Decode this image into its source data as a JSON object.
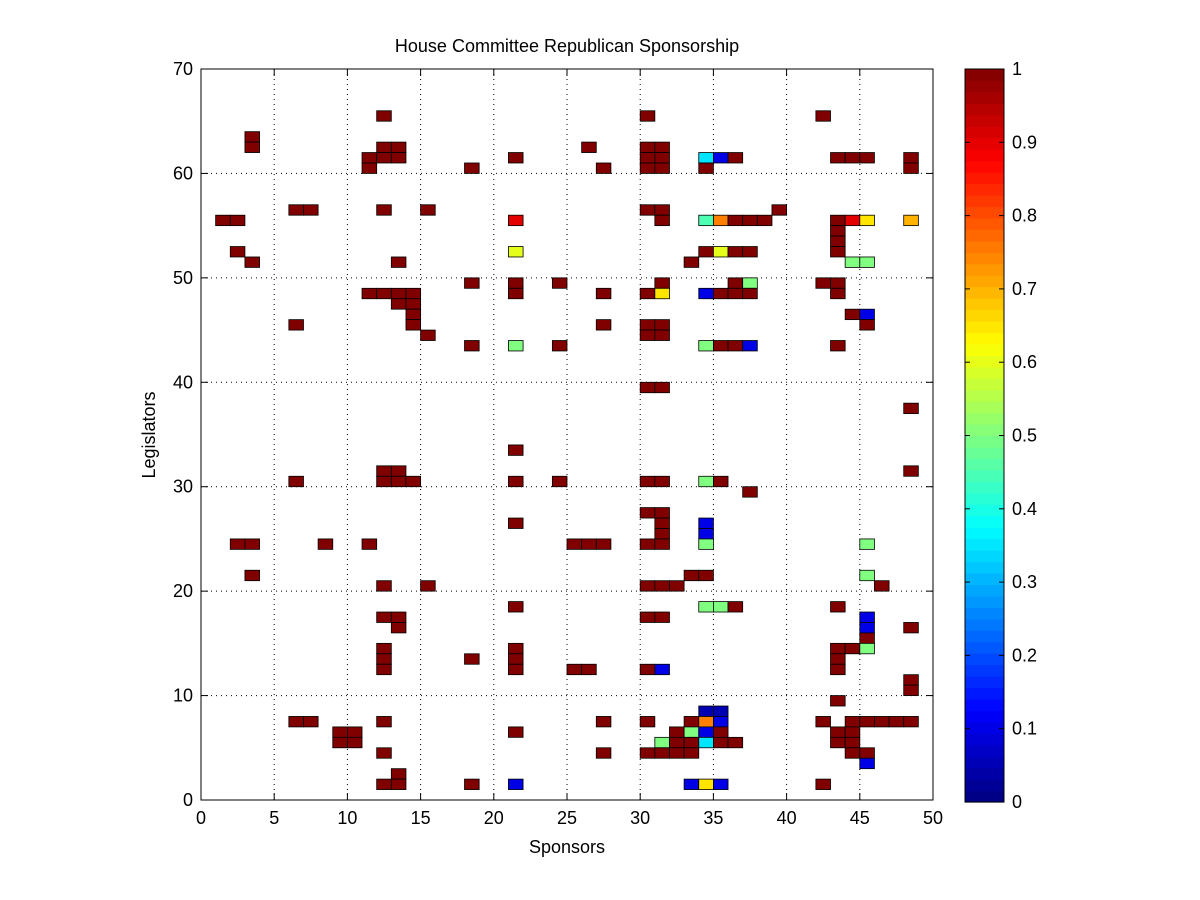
{
  "chart_data": {
    "type": "heatmap",
    "title": "House Committee Republican Sponsorship",
    "xlabel": "Sponsors",
    "ylabel": "Legislators",
    "xlim": [
      0,
      50
    ],
    "ylim": [
      0,
      70
    ],
    "xticks": [
      0,
      5,
      10,
      15,
      20,
      25,
      30,
      35,
      40,
      45,
      50
    ],
    "yticks": [
      0,
      10,
      20,
      30,
      40,
      50,
      60,
      70
    ],
    "grid": true,
    "colormap": "jet",
    "colorbar": {
      "min": 0,
      "max": 1,
      "ticks": [
        0,
        0.1,
        0.2,
        0.3,
        0.4,
        0.5,
        0.6,
        0.7,
        0.8,
        0.9,
        1
      ]
    },
    "default_value": 1,
    "rows": [
      {
        "y": 66,
        "x": [
          12,
          30,
          42
        ],
        "v": {
          "31": 0.5
        }
      },
      {
        "y": 64,
        "x": [
          3
        ]
      },
      {
        "y": 63,
        "x": [
          3,
          12,
          13,
          26,
          30,
          31
        ]
      },
      {
        "y": 62,
        "x": [
          11,
          12,
          13,
          21,
          30,
          31,
          34,
          35,
          36,
          43,
          44,
          45,
          48
        ],
        "v": {
          "34": 0.35,
          "35": 0.1
        }
      },
      {
        "y": 61,
        "x": [
          11,
          18,
          27,
          30,
          31,
          34,
          48
        ]
      },
      {
        "y": 57,
        "x": [
          6,
          7,
          12,
          15,
          30,
          31,
          39
        ]
      },
      {
        "y": 56,
        "x": [
          1,
          2,
          21,
          31,
          34,
          35,
          36,
          37,
          38,
          43,
          44,
          45,
          48
        ],
        "v": {
          "21": 0.9,
          "34": 0.45,
          "35": 0.75,
          "44": 0.9,
          "45": 0.65,
          "48": 0.7
        }
      },
      {
        "y": 55,
        "x": [
          43
        ]
      },
      {
        "y": 54,
        "x": [
          43
        ]
      },
      {
        "y": 53,
        "x": [
          2,
          21,
          34,
          35,
          36,
          37,
          43
        ],
        "v": {
          "21": 0.6,
          "35": 0.6
        }
      },
      {
        "y": 52,
        "x": [
          3,
          13,
          33,
          44,
          45
        ],
        "v": {
          "44": 0.5,
          "45": 0.5
        }
      },
      {
        "y": 50,
        "x": [
          18,
          21,
          24,
          31,
          36,
          37,
          42,
          43
        ],
        "v": {
          "37": 0.5
        }
      },
      {
        "y": 49,
        "x": [
          11,
          12,
          13,
          14,
          21,
          27,
          30,
          31,
          34,
          35,
          36,
          37,
          43
        ],
        "v": {
          "31": 0.65,
          "34": 0.1
        }
      },
      {
        "y": 48,
        "x": [
          13,
          14
        ]
      },
      {
        "y": 47,
        "x": [
          14,
          44,
          45
        ],
        "v": {
          "45": 0.1
        }
      },
      {
        "y": 46,
        "x": [
          6,
          14,
          27,
          30,
          31,
          45
        ]
      },
      {
        "y": 45,
        "x": [
          15,
          30,
          31
        ]
      },
      {
        "y": 44,
        "x": [
          18,
          21,
          24,
          34,
          35,
          36,
          37,
          43
        ],
        "v": {
          "21": 0.5,
          "34": 0.5,
          "37": 0.1
        }
      },
      {
        "y": 40,
        "x": [
          30,
          31
        ]
      },
      {
        "y": 38,
        "x": [
          48
        ]
      },
      {
        "y": 34,
        "x": [
          21
        ]
      },
      {
        "y": 32,
        "x": [
          12,
          13,
          48
        ]
      },
      {
        "y": 31,
        "x": [
          6,
          12,
          13,
          14,
          21,
          24,
          30,
          31,
          34,
          35
        ],
        "v": {
          "34": 0.5
        }
      },
      {
        "y": 30,
        "x": [
          37
        ]
      },
      {
        "y": 28,
        "x": [
          30,
          31
        ]
      },
      {
        "y": 27,
        "x": [
          21,
          31,
          34
        ],
        "v": {
          "34": 0.1
        }
      },
      {
        "y": 26,
        "x": [
          31,
          34
        ],
        "v": {
          "34": 0.1
        }
      },
      {
        "y": 25,
        "x": [
          2,
          3,
          8,
          11,
          25,
          26,
          27,
          30,
          31,
          34,
          45
        ],
        "v": {
          "34": 0.5,
          "45": 0.5
        }
      },
      {
        "y": 22,
        "x": [
          3,
          45
        ],
        "v": {
          "45": 0.5
        }
      },
      {
        "y": 21,
        "x": [
          12,
          15,
          30,
          31,
          32,
          46
        ]
      },
      {
        "y": 22,
        "x": [
          33,
          34
        ]
      },
      {
        "y": 19,
        "x": [
          21,
          34,
          35,
          36,
          43
        ],
        "v": {
          "34": 0.5,
          "35": 0.5
        }
      },
      {
        "y": 18,
        "x": [
          12,
          13,
          30,
          31,
          45
        ],
        "v": {
          "45": 0.1
        }
      },
      {
        "y": 17,
        "x": [
          13,
          45,
          48
        ],
        "v": {
          "45": 0.1
        }
      },
      {
        "y": 16,
        "x": [
          45
        ]
      },
      {
        "y": 15,
        "x": [
          12,
          21,
          43,
          44,
          45
        ],
        "v": {
          "45": 0.5
        }
      },
      {
        "y": 14,
        "x": [
          12,
          18,
          21,
          43
        ]
      },
      {
        "y": 13,
        "x": [
          12,
          21,
          25,
          26,
          30,
          31,
          43
        ],
        "v": {
          "31": 0.1
        }
      },
      {
        "y": 12,
        "x": [
          48
        ]
      },
      {
        "y": 11,
        "x": [
          48
        ]
      },
      {
        "y": 10,
        "x": [
          43
        ]
      },
      {
        "y": 9,
        "x": [
          34,
          35
        ],
        "v": {
          "34": 0.05,
          "35": 0.05
        }
      },
      {
        "y": 8,
        "x": [
          6,
          7,
          12,
          27,
          30,
          33,
          34,
          35,
          42,
          44,
          45,
          46,
          47,
          48
        ],
        "v": {
          "34": 0.75,
          "35": 0.1
        }
      },
      {
        "y": 7,
        "x": [
          9,
          10,
          21,
          32,
          33,
          34,
          35,
          43,
          44
        ],
        "v": {
          "33": 0.5,
          "34": 0.1
        }
      },
      {
        "y": 6,
        "x": [
          9,
          10,
          31,
          32,
          33,
          34,
          35,
          36,
          43,
          44
        ],
        "v": {
          "31": 0.5,
          "34": 0.35
        }
      },
      {
        "y": 5,
        "x": [
          12,
          27,
          30,
          31,
          32,
          33,
          44,
          45
        ]
      },
      {
        "y": 4,
        "x": [
          45
        ],
        "v": {
          "45": 0.1
        }
      },
      {
        "y": 3,
        "x": [
          13
        ]
      },
      {
        "y": 2,
        "x": [
          12,
          13,
          18,
          21,
          33,
          34,
          35,
          42
        ],
        "v": {
          "21": 0.1,
          "33": 0.1,
          "34": 0.65,
          "35": 0.1
        }
      }
    ]
  }
}
